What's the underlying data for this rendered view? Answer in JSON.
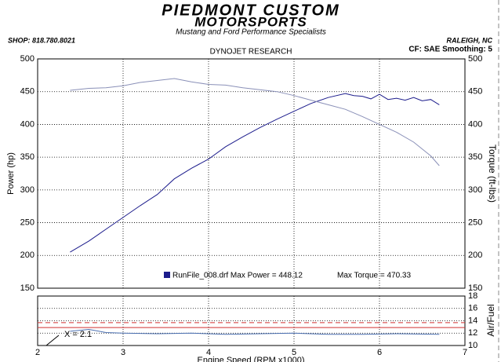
{
  "header": {
    "logo_line1": "PIEDMONT CUSTOM",
    "logo_line2": "MOTORSPORTS",
    "tagline": "Mustang and Ford Performance Specialists",
    "shop": "SHOP: 818.780.8021",
    "location": "RALEIGH, NC",
    "settings": "CF: SAE  Smoothing: 5"
  },
  "chart_data": [
    {
      "type": "line",
      "title": "DYNOJET RESEARCH",
      "y_label": "Power (hp)",
      "y2_label": "Torque (ft-lbs)",
      "xlim": [
        2,
        7
      ],
      "xticks": [
        2,
        3,
        4,
        5,
        6,
        7
      ],
      "ylim": [
        150,
        500
      ],
      "yticks": [
        150,
        200,
        250,
        300,
        350,
        400,
        450,
        500
      ],
      "y2lim": [
        150,
        500
      ],
      "y2ticks": [
        150,
        200,
        250,
        300,
        350,
        400,
        450,
        500
      ],
      "grid": true,
      "legend_text": "RunFile_008.drf Max Power = 448.12",
      "annotation": "Max Torque = 470.33",
      "series": [
        {
          "name": "Power",
          "color": "#1c1c8c",
          "x": [
            2.38,
            2.6,
            2.8,
            3.0,
            3.2,
            3.4,
            3.6,
            3.8,
            4.0,
            4.2,
            4.4,
            4.6,
            4.8,
            5.0,
            5.2,
            5.4,
            5.6,
            5.7,
            5.8,
            5.9,
            6.0,
            6.1,
            6.2,
            6.3,
            6.4,
            6.5,
            6.6,
            6.7
          ],
          "values": [
            205,
            222,
            240,
            258,
            276,
            293,
            317,
            333,
            347,
            366,
            381,
            395,
            408,
            420,
            432,
            441,
            447,
            444,
            443,
            439,
            446,
            438,
            440,
            437,
            441,
            436,
            438,
            430
          ]
        },
        {
          "name": "Torque",
          "color": "#8a90b8",
          "axis": "y2",
          "x": [
            2.38,
            2.6,
            2.8,
            3.0,
            3.2,
            3.4,
            3.6,
            3.8,
            4.0,
            4.2,
            4.4,
            4.6,
            4.8,
            5.0,
            5.2,
            5.4,
            5.6,
            5.8,
            6.0,
            6.2,
            6.4,
            6.6,
            6.7
          ],
          "values": [
            452,
            455,
            456,
            459,
            464,
            467,
            470,
            465,
            461,
            460,
            456,
            453,
            450,
            444,
            437,
            430,
            423,
            412,
            400,
            388,
            373,
            352,
            337
          ]
        }
      ]
    },
    {
      "type": "line",
      "x_label": "Engine Speed (RPM x1000)",
      "y2_label": "Air/Fuel",
      "annotation": "X = 2.1",
      "xlim": [
        2,
        7
      ],
      "xticks": [
        2,
        3,
        4,
        5,
        6,
        7
      ],
      "y2lim": [
        10,
        18
      ],
      "y2ticks": [
        10,
        12,
        14,
        16,
        18
      ],
      "grid": true,
      "reference_lines": [
        {
          "value": 13.7,
          "color": "#d03030"
        },
        {
          "value": 12.9,
          "color": "#d03030"
        }
      ],
      "series": [
        {
          "name": "Air/Fuel",
          "color": "#4a6fb0",
          "axis": "y2",
          "x": [
            2.38,
            2.6,
            2.8,
            3.0,
            3.4,
            3.8,
            4.2,
            4.6,
            5.0,
            5.4,
            5.8,
            6.2,
            6.7
          ],
          "values": [
            12.3,
            12.6,
            12.1,
            12.0,
            11.9,
            12.0,
            11.8,
            11.9,
            12.0,
            11.8,
            11.8,
            11.9,
            11.8
          ]
        }
      ]
    }
  ]
}
